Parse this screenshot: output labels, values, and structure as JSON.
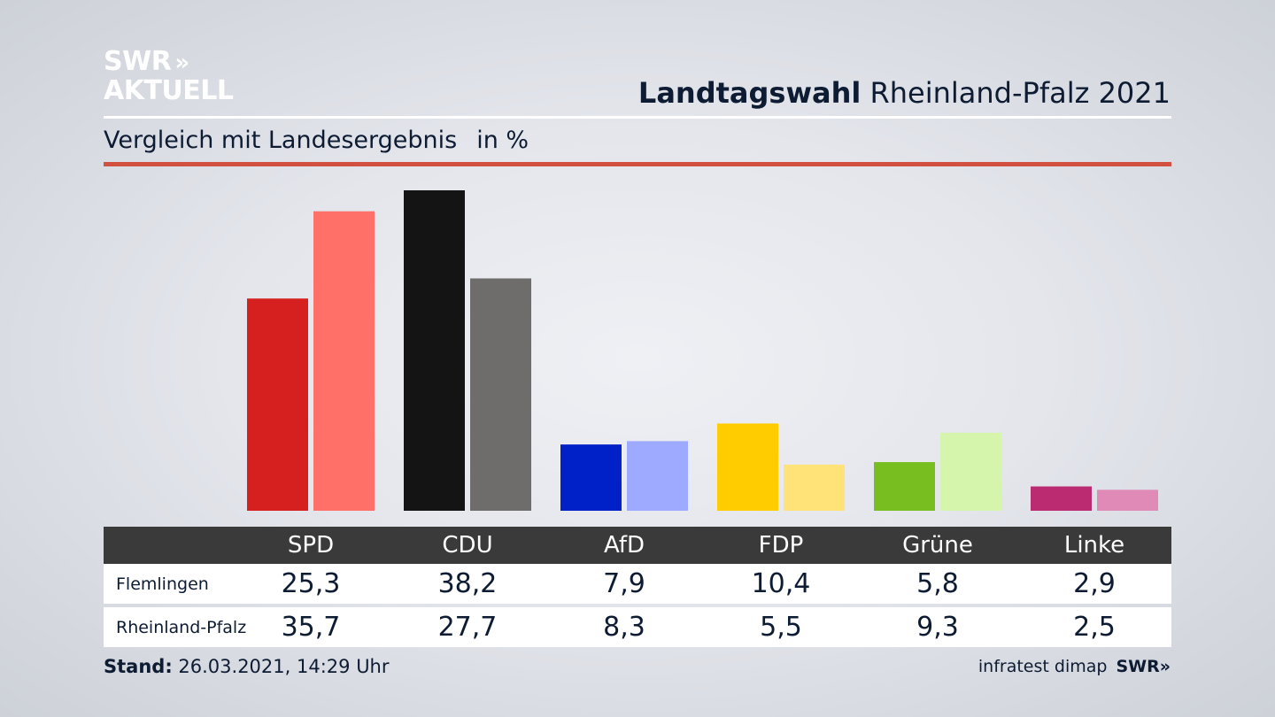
{
  "brand": {
    "line1": "SWR",
    "line2": "AKTUELL",
    "chevrons": "»"
  },
  "header": {
    "title_bold": "Landtagswahl",
    "title_rest": "Rheinland-Pfalz 2021"
  },
  "subtitle": {
    "text": "Vergleich mit Landesergebnis",
    "unit": "in %"
  },
  "colors": {
    "accent_rule": "#d2503f",
    "table_header_bg": "#3a3a3a"
  },
  "chart_data": {
    "type": "bar",
    "categories": [
      "SPD",
      "CDU",
      "AfD",
      "FDP",
      "Grüne",
      "Linke"
    ],
    "series": [
      {
        "name": "Flemlingen",
        "values": [
          25.3,
          38.2,
          7.9,
          10.4,
          5.8,
          2.9
        ],
        "labels": [
          "25,3",
          "38,2",
          "7,9",
          "10,4",
          "5,8",
          "2,9"
        ],
        "colors": [
          "#d61f1f",
          "#141414",
          "#0021c8",
          "#ffcc00",
          "#78be20",
          "#bb2b72"
        ]
      },
      {
        "name": "Rheinland-Pfalz",
        "values": [
          35.7,
          27.7,
          8.3,
          5.5,
          9.3,
          2.5
        ],
        "labels": [
          "35,7",
          "27,7",
          "8,3",
          "5,5",
          "9,3",
          "2,5"
        ],
        "colors": [
          "#ff7069",
          "#6e6d6b",
          "#9eaaff",
          "#ffe278",
          "#d4f5ab",
          "#e08ab8"
        ]
      }
    ],
    "ylim": [
      0,
      38.2
    ],
    "grid": false,
    "legend": "table-below"
  },
  "footer": {
    "stand_label": "Stand:",
    "stand_value": "26.03.2021, 14:29 Uhr",
    "source": "infratest dimap",
    "source_brand": "SWR",
    "source_chevrons": "»"
  }
}
